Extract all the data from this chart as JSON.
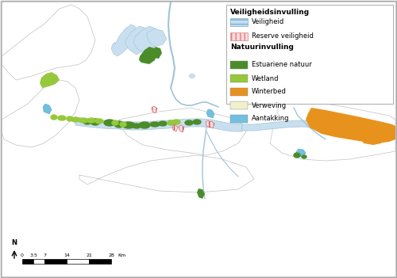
{
  "legend_title_veiligheid": "Veiligheidsinvulling",
  "legend_title_natuur": "Natuurinvulling",
  "legend_items_veiligheid": [
    {
      "label": "Veiligheid",
      "color": "#c6ddf0",
      "edgecolor": "#7aaed0",
      "hatch": "---"
    },
    {
      "label": "Reserve veiligheid",
      "color": "#fadadd",
      "edgecolor": "#e08080",
      "hatch": "|||"
    }
  ],
  "legend_items_natuur": [
    {
      "label": "Estuariene natuur",
      "color": "#4a8c2a"
    },
    {
      "label": "Wetland",
      "color": "#96c83c"
    },
    {
      "label": "Winterbed",
      "color": "#e8921e"
    },
    {
      "label": "Verweving",
      "color": "#f0f0cc"
    },
    {
      "label": "Aantakking",
      "color": "#70c0e0"
    }
  ],
  "background_color": "#ffffff",
  "border_color": "#aaaaaa",
  "river_fill": "#c8dff0",
  "river_line": "#a0c4d8",
  "land_outline": "#c0c0c0",
  "scale_ticks": [
    "0",
    "3.5",
    "7",
    "14",
    "21",
    "28"
  ],
  "scale_label": "Km"
}
